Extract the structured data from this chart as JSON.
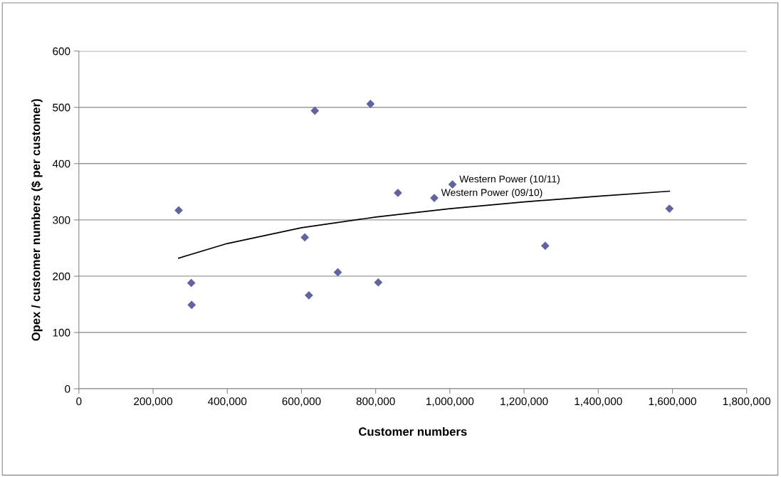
{
  "chart_data": {
    "type": "scatter",
    "xlabel": "Customer numbers",
    "ylabel": "Opex / customer numbers ($ per customer)",
    "xlim": [
      0,
      1800000
    ],
    "ylim": [
      0,
      600
    ],
    "xticks": [
      0,
      {
        "value": 200000,
        "label": "200,000"
      },
      {
        "value": 400000,
        "label": "400,000"
      },
      {
        "value": 600000,
        "label": "600,000"
      },
      {
        "value": 800000,
        "label": "800,000"
      },
      {
        "value": 1000000,
        "label": "1,000,000"
      },
      {
        "value": 1200000,
        "label": "1,200,000"
      },
      {
        "value": 1400000,
        "label": "1,400,000"
      },
      {
        "value": 1600000,
        "label": "1,600,000"
      },
      {
        "value": 1800000,
        "label": "1,800,000"
      }
    ],
    "yticks": [
      0,
      100,
      200,
      300,
      400,
      500,
      600
    ],
    "grid": "y",
    "legend": false,
    "series": [
      {
        "color": "#6264a0",
        "marker": "diamond",
        "x": [
          269000,
          303000,
          304000,
          636000,
          786000,
          860000,
          609000,
          620000,
          698000,
          807000,
          1007000,
          958000,
          1257000,
          1592000
        ],
        "values": [
          317,
          188,
          149,
          494,
          506,
          348,
          269,
          166,
          207,
          189,
          363,
          339,
          254,
          320
        ]
      },
      {
        "type": "line",
        "color": "#000000",
        "marker": "none",
        "line_style": "solid",
        "x": [
          269000,
          400000,
          600000,
          800000,
          1000000,
          1200000,
          1400000,
          1592000
        ],
        "values": [
          232,
          258,
          286,
          305,
          320,
          332,
          342,
          351
        ]
      }
    ],
    "annotations": [
      {
        "text": "Western Power (10/11)",
        "x": 1007000,
        "y": 363
      },
      {
        "text": "Western Power (09/10)",
        "x": 958000,
        "y": 339
      }
    ]
  }
}
